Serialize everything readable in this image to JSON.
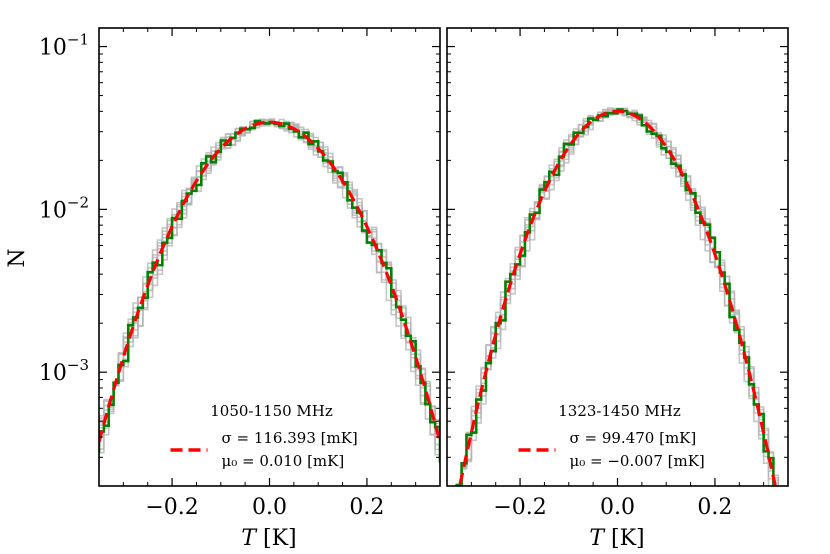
{
  "chart_data": [
    {
      "type": "line",
      "panel": "left",
      "title": "",
      "xlabel": "T [K]",
      "ylabel": "N",
      "xlim": [
        -0.35,
        0.35
      ],
      "ylim": [
        0.0002,
        0.13
      ],
      "yscale": "log",
      "xticks": [
        -0.2,
        0.0,
        0.2
      ],
      "xtick_labels": [
        "−0.2",
        "0.0",
        "0.2"
      ],
      "yticks": [
        0.001,
        0.01,
        0.1
      ],
      "ytick_labels": [
        {
          "base": "10",
          "exp": "−3"
        },
        {
          "base": "10",
          "exp": "−2"
        },
        {
          "base": "10",
          "exp": "−1"
        }
      ],
      "band_label": "1050-1150 MHz",
      "sigma_mK": 116.393,
      "mu0_mK": 0.01,
      "legend": {
        "position": "lower-center",
        "sigma_text": "σ = 116.393 [mK]",
        "mu_text": "μ₀ = 0.010 [mK]"
      },
      "series": [
        {
          "name": "gray histograms",
          "color": "#b3b3b3",
          "style": "step",
          "count": 8
        },
        {
          "name": "green histogram",
          "color": "#008000",
          "style": "step"
        },
        {
          "name": "red gaussian fit",
          "color": "#ff0000",
          "style": "dashed"
        }
      ]
    },
    {
      "type": "line",
      "panel": "right",
      "title": "",
      "xlabel": "T [K]",
      "ylabel": "",
      "xlim": [
        -0.35,
        0.35
      ],
      "ylim": [
        0.0002,
        0.13
      ],
      "yscale": "log",
      "xticks": [
        -0.2,
        0.0,
        0.2
      ],
      "xtick_labels": [
        "−0.2",
        "0.0",
        "0.2"
      ],
      "yticks": [
        0.001,
        0.01,
        0.1
      ],
      "band_label": "1323-1450 MHz",
      "sigma_mK": 99.47,
      "mu0_mK": -0.007,
      "legend": {
        "position": "lower-center",
        "sigma_text": "σ = 99.470 [mK]",
        "mu_text": "μ₀ = −0.007 [mK]"
      },
      "series": [
        {
          "name": "gray histograms",
          "color": "#b3b3b3",
          "style": "step",
          "count": 8
        },
        {
          "name": "green histogram",
          "color": "#008000",
          "style": "step"
        },
        {
          "name": "red gaussian fit",
          "color": "#ff0000",
          "style": "dashed"
        }
      ]
    }
  ]
}
